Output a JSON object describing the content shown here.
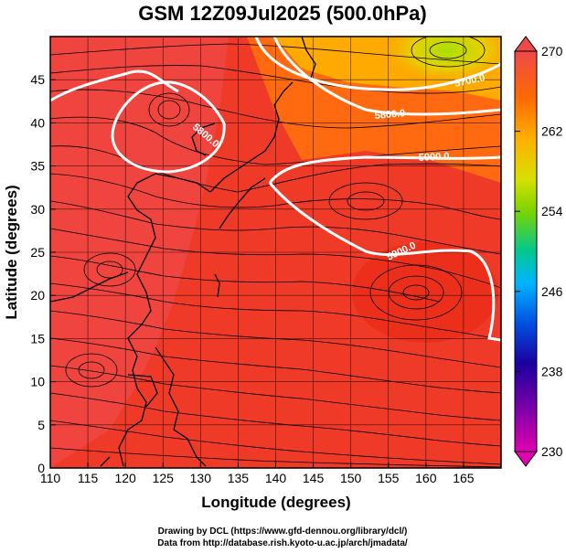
{
  "title": "GSM 12Z09Jul2025 (500.0hPa)",
  "x_axis": {
    "label": "Longitude (degrees)",
    "ticks": [
      "110",
      "115",
      "120",
      "125",
      "130",
      "135",
      "140",
      "145",
      "150",
      "155",
      "160",
      "165"
    ]
  },
  "y_axis": {
    "label": "Latitude (degrees)",
    "ticks": [
      "0",
      "5",
      "10",
      "15",
      "20",
      "25",
      "30",
      "35",
      "40",
      "45"
    ]
  },
  "colorbar": {
    "labels": [
      "270",
      "262",
      "254",
      "246",
      "238",
      "230"
    ],
    "colors": [
      "#f03c3c",
      "#ff7a00",
      "#ffc400",
      "#c8e000",
      "#5fd000",
      "#00c8a0",
      "#0096ff",
      "#0032c8",
      "#5000a0",
      "#d000b0"
    ]
  },
  "contours": [
    {
      "label": "5700.0"
    },
    {
      "label": "5800.0"
    },
    {
      "label": "5900.0"
    },
    {
      "label": "5800.0",
      "note_hidden": false
    },
    {
      "label": "5900.0"
    }
  ],
  "credits": {
    "line1": "Drawing by DCL (https://www.gfd-dennou.org/library/dcl/)",
    "line2": "Data from http://database.rish.kyoto-u.ac.jp/arch/jmadata/"
  },
  "chart_data": {
    "type": "heatmap",
    "title": "GSM 12Z09Jul2025 (500.0hPa)",
    "xlabel": "Longitude (degrees)",
    "ylabel": "Latitude (degrees)",
    "xlim": [
      110,
      170
    ],
    "ylim": [
      0,
      50
    ],
    "colorbar_range": [
      230,
      270
    ],
    "colorbar_ticks": [
      230,
      238,
      246,
      254,
      262,
      270
    ],
    "contour_levels": [
      5700,
      5800,
      5900
    ],
    "overlays": [
      "geopotential height contours",
      "wind streamlines",
      "coastlines"
    ],
    "grid": true
  }
}
